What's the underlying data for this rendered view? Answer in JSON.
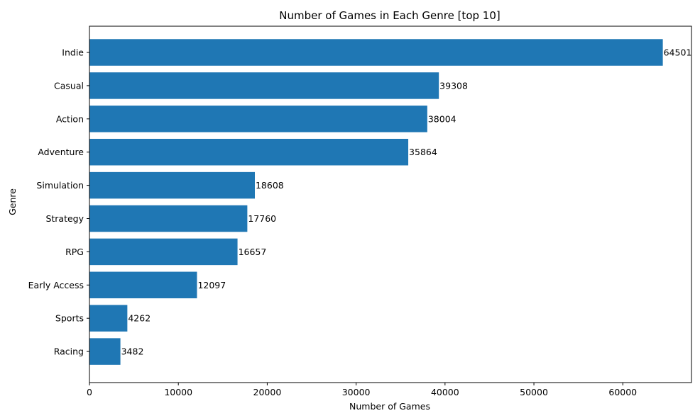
{
  "chart_data": {
    "type": "bar",
    "orientation": "horizontal",
    "title": "Number of Games in Each Genre [top 10]",
    "xlabel": "Number of Games",
    "ylabel": "Genre",
    "categories": [
      "Indie",
      "Casual",
      "Action",
      "Adventure",
      "Simulation",
      "Strategy",
      "RPG",
      "Early Access",
      "Sports",
      "Racing"
    ],
    "values": [
      64501,
      39308,
      38004,
      35864,
      18608,
      17760,
      16657,
      12097,
      4262,
      3482
    ],
    "xlim": [
      0,
      67726
    ],
    "xticks": [
      0,
      10000,
      20000,
      30000,
      40000,
      50000,
      60000
    ],
    "grid": false,
    "bar_color": "#1f77b4"
  }
}
